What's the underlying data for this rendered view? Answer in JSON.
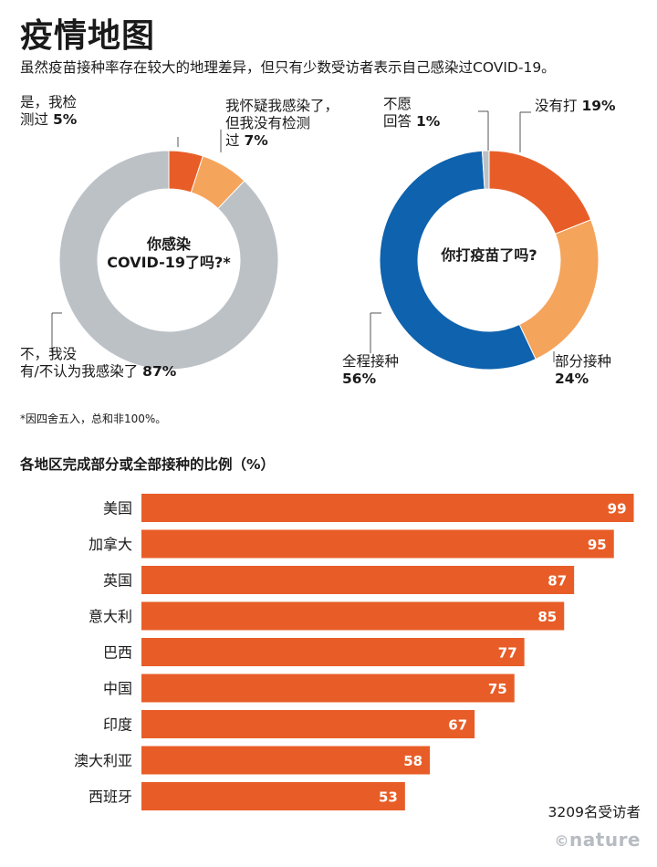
{
  "header": {
    "title": "疫情地图",
    "subtitle": "虽然疫苗接种率存在较大的地理差异，但只有少数受访者表示自己感染过COVID-19。"
  },
  "colors": {
    "orange_dark": "#e85d27",
    "orange_light": "#f5a45c",
    "gray": "#bcc1c6",
    "blue": "#0e62ae",
    "bar": "#e85d27"
  },
  "chart_data": [
    {
      "type": "pie",
      "variant": "donut",
      "center_label": "你感染\nCOVID-19了吗?*",
      "center_line1": "你感染",
      "center_line2": "COVID-19了吗?*",
      "slices": [
        {
          "label": "是，我检测过",
          "value": 5,
          "color": "#e85d27"
        },
        {
          "label": "我怀疑我感染了，但我没有检测过",
          "value": 7,
          "color": "#f5a45c"
        },
        {
          "label": "不，我没有/不认为我感染了",
          "value": 87,
          "color": "#bcc1c6"
        }
      ],
      "labels": {
        "yes_l1": "是，我检",
        "yes_l2": "测过",
        "yes_v": "5%",
        "suspect_l1": "我怀疑我感染了，",
        "suspect_l2": "但我没有检测",
        "suspect_l3": "过",
        "suspect_v": "7%",
        "no_l1": "不，我没",
        "no_l2": "有/不认为我感染了",
        "no_v": "87%"
      }
    },
    {
      "type": "pie",
      "variant": "donut",
      "center_label": "你打疫苗了吗?",
      "slices": [
        {
          "label": "没有打",
          "value": 19,
          "color": "#e85d27"
        },
        {
          "label": "部分接种",
          "value": 24,
          "color": "#f5a45c"
        },
        {
          "label": "全程接种",
          "value": 56,
          "color": "#0e62ae"
        },
        {
          "label": "不愿回答",
          "value": 1,
          "color": "#bcc1c6"
        }
      ],
      "labels": {
        "decline_l1": "不愿",
        "decline_l2": "回答",
        "decline_v": "1%",
        "none_l": "没有打",
        "none_v": "19%",
        "partial_l": "部分接种",
        "partial_v": "24%",
        "full_l": "全程接种",
        "full_v": "56%"
      }
    },
    {
      "type": "bar",
      "orientation": "horizontal",
      "title": "各地区完成部分或全部接种的比例（%）",
      "categories": [
        "美国",
        "加拿大",
        "英国",
        "意大利",
        "巴西",
        "中国",
        "印度",
        "澳大利亚",
        "西班牙"
      ],
      "values": [
        99,
        95,
        87,
        85,
        77,
        75,
        67,
        58,
        53
      ],
      "xlim": [
        0,
        100
      ]
    }
  ],
  "footnote": "*因四舍五入，总和非100%。",
  "respondents": "3209名受访者",
  "credit": "nature"
}
